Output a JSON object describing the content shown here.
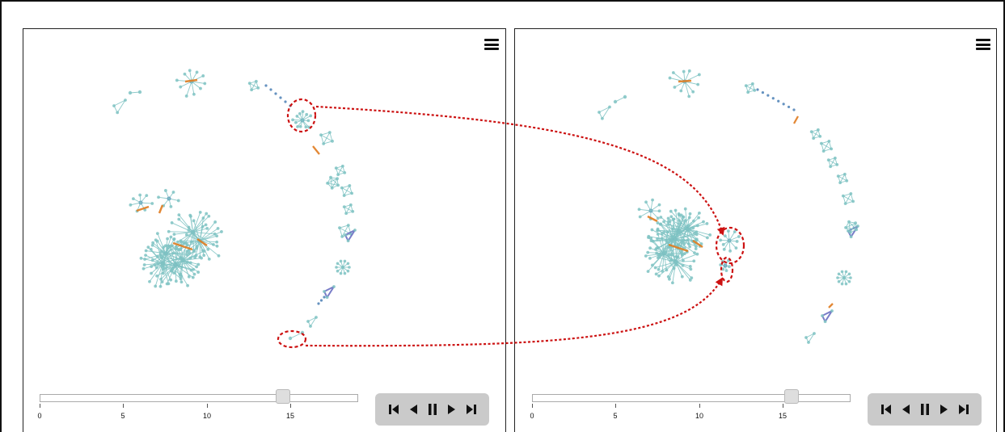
{
  "colors": {
    "node_teal": "#7fc3c3",
    "node_blue": "#4a7fb5",
    "edge_orange": "#e07b1f",
    "edge_purple": "#6a6fc2",
    "annotation_red": "#cc1111",
    "control_bg": "#cacaca"
  },
  "left_panel": {
    "menu_icon": "hamburger-menu-icon",
    "slider": {
      "ticks": [
        "0",
        "5",
        "10",
        "15"
      ],
      "min": 0,
      "max": 19,
      "value": 14.5
    },
    "controls": [
      "skip-to-start-icon",
      "step-back-icon",
      "pause-icon",
      "play-icon",
      "skip-to-end-icon"
    ]
  },
  "right_panel": {
    "menu_icon": "hamburger-menu-icon",
    "slider": {
      "ticks": [
        "0",
        "5",
        "10",
        "15"
      ],
      "min": 0,
      "max": 19,
      "value": 15.5
    },
    "controls": [
      "skip-to-start-icon",
      "step-back-icon",
      "pause-icon",
      "play-icon",
      "skip-to-end-icon"
    ]
  }
}
